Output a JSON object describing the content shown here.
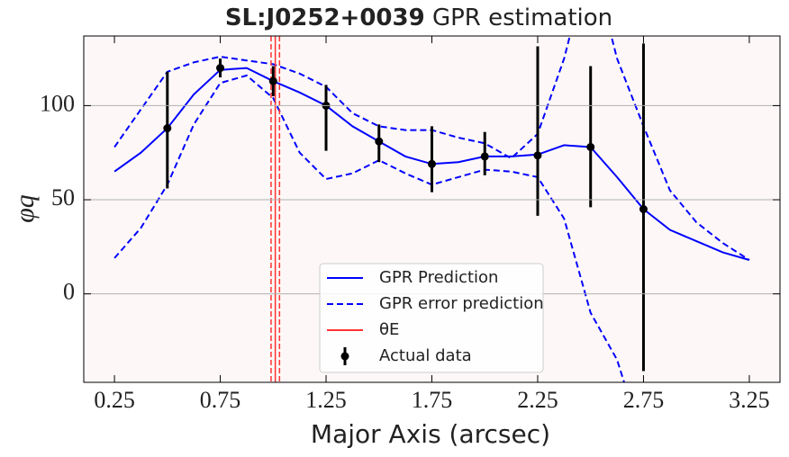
{
  "chart_data": {
    "type": "line",
    "title": {
      "bold": "SL:J0252+0039",
      "text": "GPR estimation"
    },
    "xlabel": "Major Axis (arcsec)",
    "ylabel": "φq",
    "xlim": [
      0.105,
      3.395
    ],
    "ylim": [
      -47,
      137
    ],
    "xticks": [
      0.25,
      0.75,
      1.25,
      1.75,
      2.25,
      2.75,
      3.25
    ],
    "yticks": [
      0,
      50,
      100
    ],
    "grid": "y",
    "background": "#fdf8f7",
    "legend": "lower center",
    "series": [
      {
        "name": "GPR Prediction",
        "color": "#0000ff",
        "style": "solid",
        "x": [
          0.25,
          0.375,
          0.5,
          0.625,
          0.75,
          0.875,
          1.0,
          1.125,
          1.25,
          1.375,
          1.5,
          1.625,
          1.75,
          1.875,
          2.0,
          2.125,
          2.25,
          2.375,
          2.5,
          2.625,
          2.75,
          2.875,
          3.0,
          3.125,
          3.25
        ],
        "values": [
          65,
          75,
          88,
          106,
          119,
          120,
          113,
          107,
          100,
          89,
          81,
          73,
          69,
          70,
          73,
          73,
          74,
          79,
          78,
          62,
          45,
          34,
          28,
          22,
          18
        ]
      },
      {
        "name": "GPR error prediction",
        "color": "#0000ff",
        "style": "dashed",
        "x": [
          0.25,
          0.375,
          0.5,
          0.625,
          0.75,
          0.875,
          1.0,
          1.125,
          1.25,
          1.375,
          1.5,
          1.625,
          1.75,
          1.875,
          2.0,
          2.125,
          2.25,
          2.375,
          2.5,
          2.625,
          2.75,
          2.875,
          3.0,
          3.125,
          3.25
        ],
        "upper": [
          78,
          98,
          118,
          123,
          126,
          124,
          122,
          117,
          110,
          96,
          89,
          87,
          87,
          83,
          80,
          72,
          85,
          125,
          180,
          125,
          89,
          55,
          38,
          27,
          18
        ],
        "lower": [
          19,
          35,
          58,
          90,
          112,
          116,
          104,
          75,
          61,
          64,
          71,
          64,
          58,
          62,
          66,
          65,
          62,
          40,
          -10,
          -35,
          -80,
          null,
          null,
          null,
          null
        ]
      }
    ],
    "vlines": {
      "name": "θE",
      "color": "#ff3333",
      "value": 1.01,
      "err": [
        0.99,
        1.03
      ]
    },
    "errorbar": {
      "name": "Actual data",
      "color": "#000000",
      "x": [
        0.5,
        0.75,
        1.0,
        1.25,
        1.5,
        1.75,
        2.0,
        2.25,
        2.5,
        2.75
      ],
      "values": [
        88,
        120,
        113,
        100,
        81,
        69,
        73,
        73.5,
        78,
        45
      ],
      "yerr_low": [
        32,
        5,
        8,
        24,
        11,
        15,
        10,
        32,
        32,
        86
      ],
      "yerr_high": [
        30,
        5,
        8,
        11,
        9,
        20,
        13,
        58,
        43,
        88
      ]
    }
  }
}
